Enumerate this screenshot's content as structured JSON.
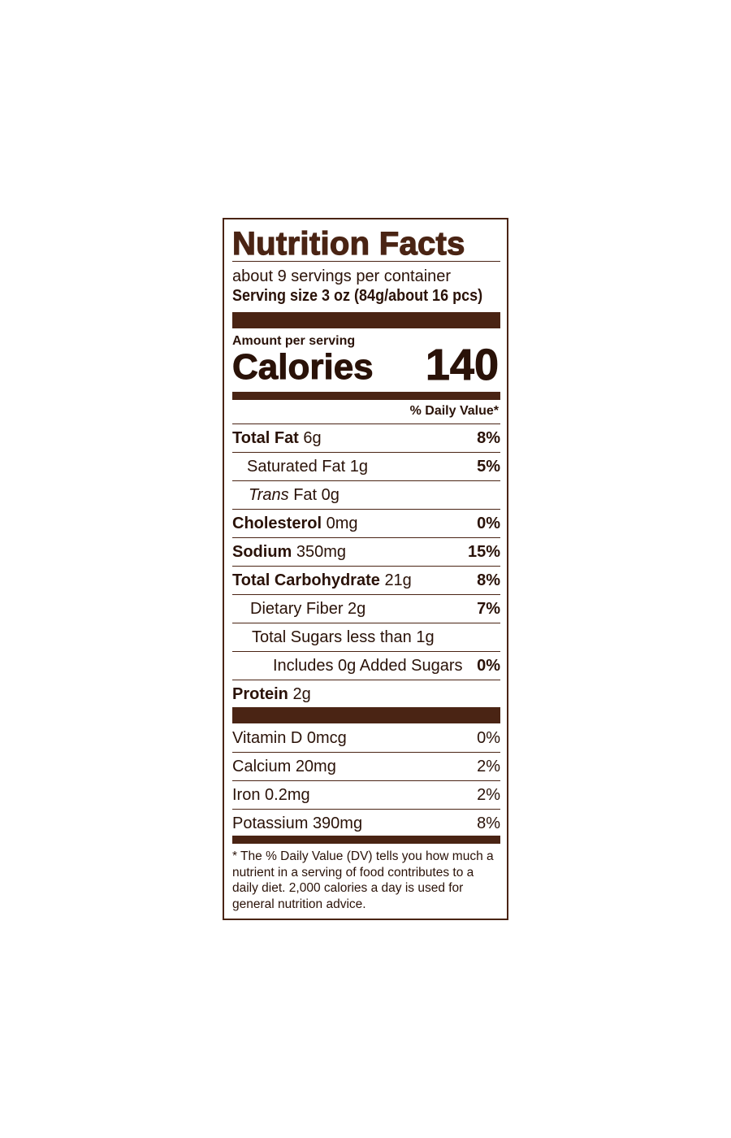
{
  "label": {
    "title": "Nutrition Facts",
    "servings_per_container": "about 9 servings per container",
    "serving_size": "Serving size 3 oz (84g/about 16 pcs)",
    "amount_per_serving": "Amount per serving",
    "calories_label": "Calories",
    "calories_value": "140",
    "daily_value_header": "% Daily Value*",
    "nutrients": [
      {
        "name": "Total Fat",
        "amount": "6g",
        "dv": "8%"
      },
      {
        "name": "Saturated Fat",
        "amount": "1g",
        "dv": "5%"
      },
      {
        "name": "Trans",
        "name_rest": "Fat",
        "amount": "0g",
        "dv": ""
      },
      {
        "name": "Cholesterol",
        "amount": "0mg",
        "dv": "0%"
      },
      {
        "name": "Sodium",
        "amount": "350mg",
        "dv": "15%"
      },
      {
        "name": "Total Carbohydrate",
        "amount": "21g",
        "dv": "8%"
      },
      {
        "name": "Dietary Fiber",
        "amount": "2g",
        "dv": "7%"
      },
      {
        "name": "Total Sugars",
        "amount": "less than 1g",
        "dv": ""
      },
      {
        "name": "Includes 0g Added Sugars",
        "amount": "",
        "dv": "0%"
      },
      {
        "name": "Protein",
        "amount": "2g",
        "dv": ""
      }
    ],
    "vitamins": [
      {
        "name": "Vitamin D",
        "amount": "0mcg",
        "dv": "0%"
      },
      {
        "name": "Calcium",
        "amount": "20mg",
        "dv": "2%"
      },
      {
        "name": "Iron",
        "amount": "0.2mg",
        "dv": "2%"
      },
      {
        "name": "Potassium",
        "amount": "390mg",
        "dv": "8%"
      }
    ],
    "footnote": "* The % Daily Value (DV) tells you how much a nutrient in a serving of food contributes to a daily diet. 2,000 calories a day is used for general nutrition advice.",
    "color": "#4a2414"
  }
}
